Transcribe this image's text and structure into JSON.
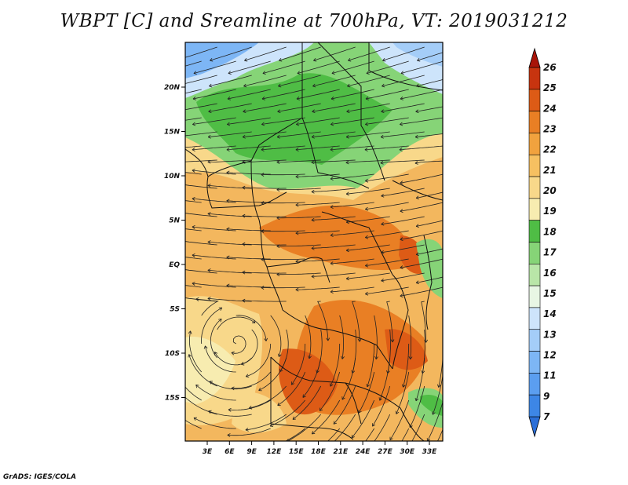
{
  "title": "WBPT [C] and Sreamline at 700hPa, VT: 2019031212",
  "credit": "GrADS: IGES/COLA",
  "map": {
    "lon_ticks": [
      "3E",
      "6E",
      "9E",
      "12E",
      "15E",
      "18E",
      "21E",
      "24E",
      "27E",
      "30E",
      "33E"
    ],
    "lat_ticks": [
      "20N",
      "15N",
      "10N",
      "5N",
      "EQ",
      "5S",
      "10S",
      "15S"
    ]
  },
  "colorbar": {
    "levels": [
      "7",
      "9",
      "11",
      "12",
      "13",
      "14",
      "15",
      "16",
      "17",
      "18",
      "19",
      "20",
      "21",
      "22",
      "23",
      "24",
      "25",
      "26"
    ],
    "colors": [
      "#2b6fd8",
      "#3d86e6",
      "#5b9ef0",
      "#7db6f5",
      "#a4cdf8",
      "#cde4fb",
      "#e8f6e4",
      "#b9e6a8",
      "#86d477",
      "#4fbd45",
      "#f7ecb0",
      "#f8d88a",
      "#f6c061",
      "#f1a23e",
      "#e97f24",
      "#dd5b16",
      "#c7340f",
      "#a81408"
    ]
  }
}
